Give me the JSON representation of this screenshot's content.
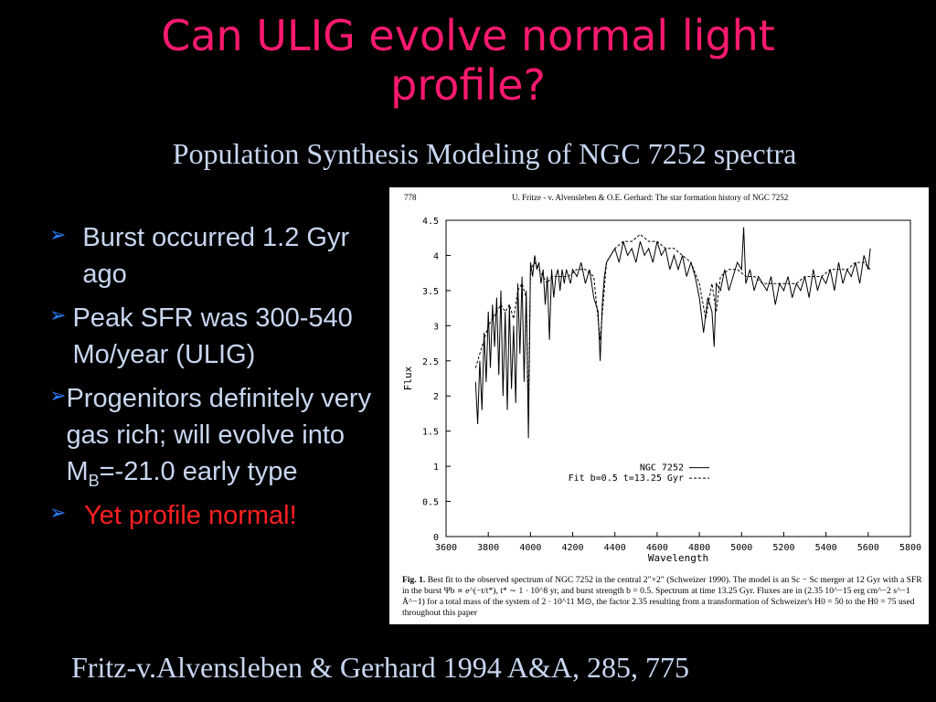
{
  "slide": {
    "title_line1": "Can ULIG evolve normal light",
    "title_line2": "profile?",
    "subtitle": "Population Synthesis Modeling of NGC 7252 spectra",
    "bullets": [
      {
        "text": "Burst occurred 1.2 Gyr ago"
      },
      {
        "text": "Peak SFR was 300-540 Mo/year (ULIG)"
      },
      {
        "pre": "Progenitors definitely very gas rich; will evolve into M",
        "sub": "B",
        "post": "=-21.0 early type"
      },
      {
        "text": "Yet profile normal!"
      }
    ],
    "accent_colors": {
      "title": "#ff1a6e",
      "text": "#c8d6f0",
      "bullet_arrow": "#2a7cff",
      "highlight": "#ff2020"
    },
    "footer": "Fritz-v.Alvensleben & Gerhard 1994 A&A, 285, 775"
  },
  "figure": {
    "page_number": "778",
    "running_head": "U. Fritze - v. Alvensleben & O.E. Gerhard: The star formation history of NGC 7252",
    "caption_label": "Fig. 1.",
    "caption_text": "Best fit to the observed spectrum of NGC 7252 in the central 2″×2″ (Schweizer 1990). The model is an Sc − Sc merger at 12 Gyr with a SFR in the burst Ψb ∝ e^(−t/t*), t* ∼ 1 · 10^8 yr, and burst strength b = 0.5. Spectrum at time 13.25 Gyr. Fluxes are in (2.35 10^−15 erg cm^−2 s^−1 Å^−1) for a total mass of the system of 2 · 10^11 M⊙, the factor 2.35 resulting from a transformation of Schweizer's H0 = 50 to the H0 = 75 used throughout this paper"
  },
  "chart_data": {
    "type": "line",
    "xlabel": "Wavelength",
    "ylabel": "Flux",
    "xlim": [
      3600,
      5800
    ],
    "ylim": [
      0,
      4.5
    ],
    "x_ticks": [
      "3600",
      "3800",
      "4000",
      "4200",
      "4400",
      "4600",
      "4800",
      "5000",
      "5200",
      "5400",
      "5600",
      "5800"
    ],
    "y_ticks": [
      "0",
      "0.5",
      "1",
      "1.5",
      "2",
      "2.5",
      "3",
      "3.5",
      "4",
      "4.5"
    ],
    "legend": [
      "NGC 7252",
      "Fit b=0.5 t=13.25 Gyr"
    ],
    "legend_position": "lower-right",
    "series": [
      {
        "name": "NGC 7252",
        "style": "solid",
        "x": [
          3740,
          3750,
          3760,
          3770,
          3780,
          3790,
          3800,
          3810,
          3820,
          3830,
          3840,
          3850,
          3860,
          3870,
          3880,
          3890,
          3900,
          3910,
          3920,
          3930,
          3940,
          3950,
          3960,
          3970,
          3980,
          3990,
          4000,
          4010,
          4020,
          4030,
          4040,
          4050,
          4060,
          4070,
          4080,
          4090,
          4100,
          4110,
          4120,
          4130,
          4140,
          4150,
          4160,
          4170,
          4180,
          4190,
          4200,
          4220,
          4240,
          4260,
          4280,
          4300,
          4320,
          4330,
          4340,
          4350,
          4360,
          4380,
          4400,
          4420,
          4440,
          4460,
          4480,
          4500,
          4520,
          4540,
          4560,
          4580,
          4600,
          4620,
          4640,
          4660,
          4680,
          4700,
          4720,
          4740,
          4760,
          4780,
          4800,
          4820,
          4840,
          4860,
          4870,
          4880,
          4900,
          4920,
          4940,
          4960,
          4980,
          5000,
          5010,
          5020,
          5040,
          5060,
          5080,
          5100,
          5120,
          5140,
          5160,
          5180,
          5200,
          5220,
          5240,
          5260,
          5280,
          5300,
          5320,
          5340,
          5360,
          5380,
          5400,
          5420,
          5440,
          5460,
          5480,
          5500,
          5520,
          5540,
          5560,
          5580,
          5600,
          5610
        ],
        "y": [
          2.2,
          1.6,
          2.5,
          1.8,
          2.9,
          2.2,
          3.2,
          2.4,
          3.3,
          2.7,
          3.4,
          2.3,
          3.5,
          2.0,
          3.2,
          1.8,
          3.3,
          2.1,
          3.0,
          1.9,
          3.6,
          2.6,
          3.7,
          2.2,
          3.5,
          1.4,
          3.9,
          3.7,
          4.0,
          3.8,
          3.9,
          3.6,
          3.8,
          3.3,
          3.7,
          2.8,
          3.8,
          3.4,
          3.7,
          3.8,
          3.5,
          3.8,
          3.6,
          3.8,
          3.7,
          3.6,
          3.8,
          3.7,
          3.9,
          3.6,
          3.8,
          3.4,
          3.2,
          2.5,
          3.3,
          3.7,
          3.9,
          4.0,
          4.1,
          3.9,
          4.2,
          4.0,
          4.1,
          3.9,
          4.2,
          4.0,
          4.1,
          3.9,
          4.2,
          4.0,
          4.1,
          3.8,
          4.0,
          3.8,
          4.0,
          3.7,
          3.9,
          3.7,
          3.4,
          2.9,
          3.4,
          3.2,
          2.7,
          3.6,
          3.5,
          3.8,
          3.5,
          3.7,
          3.9,
          3.8,
          4.4,
          3.6,
          3.8,
          3.5,
          3.7,
          3.6,
          3.5,
          3.7,
          3.3,
          3.6,
          3.5,
          3.7,
          3.4,
          3.6,
          3.5,
          3.7,
          3.4,
          3.8,
          3.5,
          3.7,
          3.6,
          3.8,
          3.5,
          3.9,
          3.6,
          3.8,
          3.7,
          3.9,
          3.6,
          4.0,
          3.8,
          4.1
        ]
      },
      {
        "name": "Fit b=0.5 t=13.25 Gyr",
        "style": "dashed",
        "x": [
          3740,
          3760,
          3780,
          3800,
          3820,
          3840,
          3860,
          3880,
          3900,
          3920,
          3940,
          3960,
          3980,
          3990,
          4000,
          4020,
          4040,
          4060,
          4080,
          4100,
          4140,
          4180,
          4220,
          4260,
          4300,
          4330,
          4360,
          4400,
          4440,
          4480,
          4520,
          4560,
          4600,
          4640,
          4680,
          4720,
          4760,
          4800,
          4830,
          4860,
          4880,
          4900,
          4940,
          4980,
          5020,
          5060,
          5100,
          5140,
          5180,
          5220,
          5260,
          5300,
          5340,
          5380,
          5420,
          5460,
          5500,
          5540,
          5580,
          5610
        ],
        "y": [
          2.4,
          2.6,
          2.8,
          3.0,
          3.1,
          3.2,
          3.3,
          3.2,
          3.3,
          3.1,
          3.5,
          3.6,
          3.4,
          1.8,
          3.8,
          3.9,
          3.8,
          3.7,
          3.6,
          3.7,
          3.7,
          3.7,
          3.8,
          3.8,
          3.7,
          2.8,
          3.9,
          4.1,
          4.2,
          4.2,
          4.3,
          4.2,
          4.2,
          4.1,
          4.1,
          4.0,
          3.9,
          3.6,
          3.1,
          3.6,
          3.2,
          3.7,
          3.8,
          3.8,
          3.7,
          3.7,
          3.6,
          3.6,
          3.6,
          3.6,
          3.6,
          3.7,
          3.7,
          3.7,
          3.8,
          3.8,
          3.8,
          3.9,
          3.9,
          3.8
        ]
      }
    ]
  }
}
